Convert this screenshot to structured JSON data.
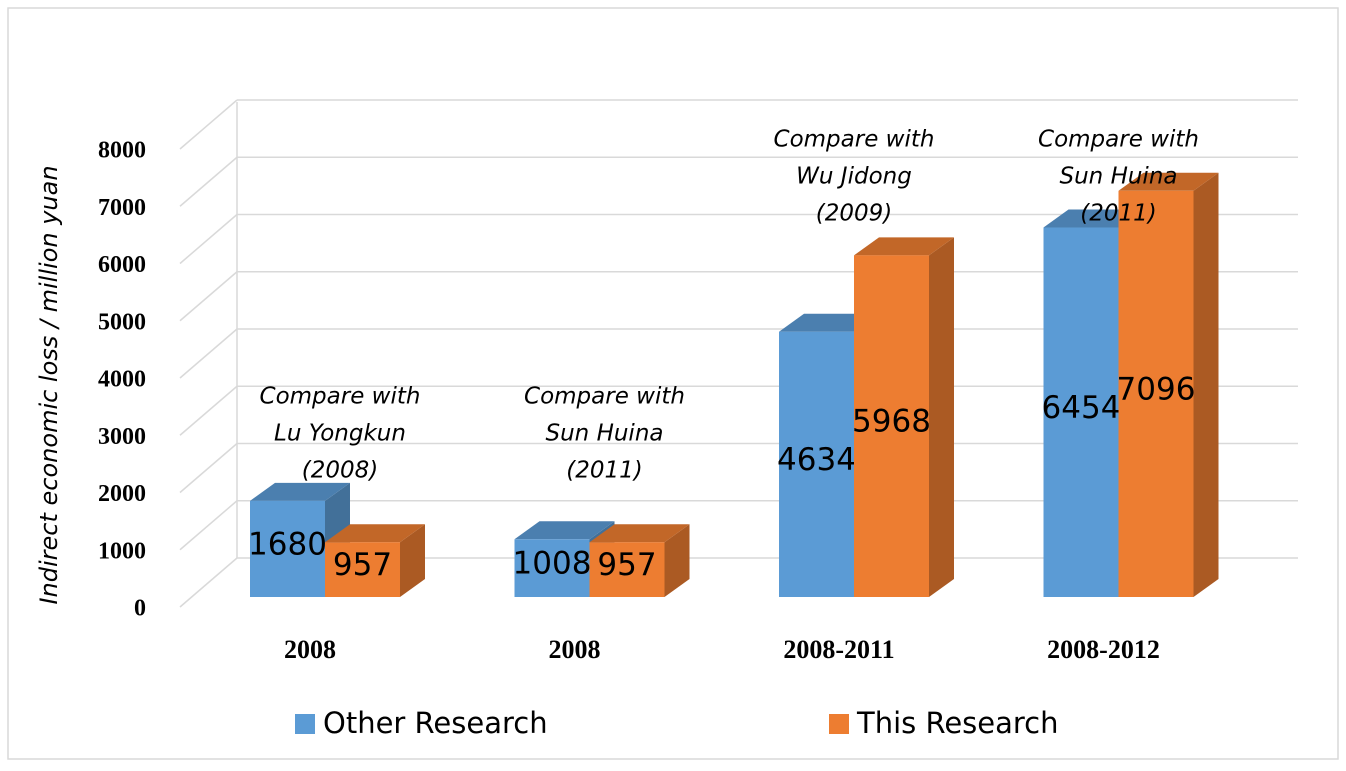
{
  "chart_data": {
    "type": "bar3d",
    "y_label": "Indirect economic loss / million yuan",
    "categories": [
      "2008",
      "2008",
      "2008-2011",
      "2008-2012"
    ],
    "annotations": [
      [
        "Compare with",
        "Lu Yongkun",
        "(2008)"
      ],
      [
        "Compare with",
        "Sun Huina",
        "(2011)"
      ],
      [
        "Compare with",
        "Wu Jidong",
        "(2009)"
      ],
      [
        "Compare with",
        "Sun Huina",
        "(2011)"
      ]
    ],
    "series": [
      {
        "name": "Other Research",
        "color": "#5b9bd5",
        "values": [
          1680,
          1008,
          4634,
          6454
        ]
      },
      {
        "name": "This Research",
        "color": "#ed7d31",
        "values": [
          957,
          957,
          5968,
          7096
        ]
      }
    ],
    "ylim": [
      0,
      8000
    ],
    "yticks": [
      0,
      1000,
      2000,
      3000,
      4000,
      5000,
      6000,
      7000,
      8000
    ],
    "grid": true,
    "legend": "bottom"
  }
}
